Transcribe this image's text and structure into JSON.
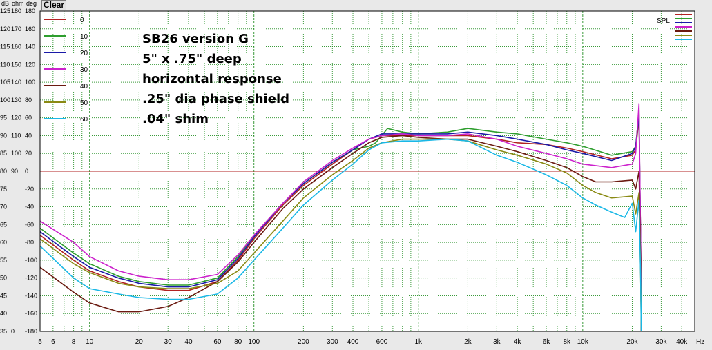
{
  "header": {
    "units": [
      "dB",
      "ohm",
      "deg"
    ],
    "clear_label": "Clear"
  },
  "annotation": [
    "SB26 version G",
    "5\" x .75\" deep",
    "horizontal response",
    ".25\" dia phase shield",
    ".04\" shim"
  ],
  "spl_label": "SPL",
  "x_unit_label": "Hz",
  "colors": {
    "plot_bg": "#ffffff",
    "grid": "#1a8a1a",
    "frame": "#000000",
    "reference_line": "#b22222"
  },
  "chart_data": {
    "type": "line",
    "x_scale": "log",
    "xlim": [
      5,
      48000
    ],
    "x_tick_labels": [
      {
        "v": 5,
        "t": "5"
      },
      {
        "v": 6,
        "t": "6"
      },
      {
        "v": 8,
        "t": "8"
      },
      {
        "v": 10,
        "t": "10"
      },
      {
        "v": 20,
        "t": "20"
      },
      {
        "v": 30,
        "t": "30"
      },
      {
        "v": 40,
        "t": "40"
      },
      {
        "v": 60,
        "t": "60"
      },
      {
        "v": 80,
        "t": "80"
      },
      {
        "v": 100,
        "t": "100"
      },
      {
        "v": 200,
        "t": "200"
      },
      {
        "v": 300,
        "t": "300"
      },
      {
        "v": 400,
        "t": "400"
      },
      {
        "v": 600,
        "t": "600"
      },
      {
        "v": 1000,
        "t": "1k"
      },
      {
        "v": 2000,
        "t": "2k"
      },
      {
        "v": 3000,
        "t": "3k"
      },
      {
        "v": 4000,
        "t": "4k"
      },
      {
        "v": 6000,
        "t": "6k"
      },
      {
        "v": 8000,
        "t": "8k"
      },
      {
        "v": 10000,
        "t": "10k"
      },
      {
        "v": 20000,
        "t": "20k"
      },
      {
        "v": 30000,
        "t": "30k"
      },
      {
        "v": 40000,
        "t": "40k"
      }
    ],
    "ylim_db": [
      35,
      125
    ],
    "y_tick_rows": [
      {
        "db": 125,
        "ohm": "180",
        "deg": "180"
      },
      {
        "db": 120,
        "ohm": "170",
        "deg": "160"
      },
      {
        "db": 115,
        "ohm": "160",
        "deg": "140"
      },
      {
        "db": 110,
        "ohm": "150",
        "deg": "120"
      },
      {
        "db": 105,
        "ohm": "140",
        "deg": "100"
      },
      {
        "db": 100,
        "ohm": "130",
        "deg": "80"
      },
      {
        "db": 95,
        "ohm": "120",
        "deg": "60"
      },
      {
        "db": 90,
        "ohm": "110",
        "deg": "40"
      },
      {
        "db": 85,
        "ohm": "100",
        "deg": "20"
      },
      {
        "db": 80,
        "ohm": "90",
        "deg": "0"
      },
      {
        "db": 75,
        "ohm": "",
        "deg": "-20"
      },
      {
        "db": 70,
        "ohm": "",
        "deg": "-40"
      },
      {
        "db": 65,
        "ohm": "",
        "deg": "-60"
      },
      {
        "db": 60,
        "ohm": "",
        "deg": "-80"
      },
      {
        "db": 55,
        "ohm": "",
        "deg": "-100"
      },
      {
        "db": 50,
        "ohm": "",
        "deg": "-120"
      },
      {
        "db": 45,
        "ohm": "",
        "deg": "-140"
      },
      {
        "db": 40,
        "ohm": "",
        "deg": "-160"
      },
      {
        "db": 35,
        "ohm": "0",
        "deg": "-180"
      }
    ],
    "reference_line_db": 80,
    "grid": true,
    "legend_position": "top-left",
    "series": [
      {
        "name": "0",
        "color": "#b22222",
        "points": [
          [
            5,
            62
          ],
          [
            8,
            55
          ],
          [
            10,
            52
          ],
          [
            15,
            49
          ],
          [
            20,
            47.5
          ],
          [
            30,
            46.5
          ],
          [
            40,
            46.5
          ],
          [
            60,
            49
          ],
          [
            80,
            55
          ],
          [
            100,
            61
          ],
          [
            150,
            70.5
          ],
          [
            200,
            76
          ],
          [
            300,
            82
          ],
          [
            400,
            86
          ],
          [
            500,
            89
          ],
          [
            600,
            90
          ],
          [
            800,
            90
          ],
          [
            1000,
            90
          ],
          [
            1500,
            90
          ],
          [
            2000,
            90
          ],
          [
            3000,
            89
          ],
          [
            4000,
            88
          ],
          [
            6000,
            87.5
          ],
          [
            8000,
            86.5
          ],
          [
            10000,
            85.5
          ],
          [
            15000,
            83.5
          ],
          [
            20000,
            84.5
          ],
          [
            21000,
            86
          ],
          [
            22000,
            95
          ],
          [
            22500,
            60
          ],
          [
            22700,
            35
          ]
        ]
      },
      {
        "name": "10",
        "color": "#2e9e2e",
        "points": [
          [
            5,
            64
          ],
          [
            8,
            57
          ],
          [
            10,
            54
          ],
          [
            15,
            50.5
          ],
          [
            20,
            49
          ],
          [
            30,
            48
          ],
          [
            40,
            48
          ],
          [
            60,
            50
          ],
          [
            80,
            56
          ],
          [
            100,
            62
          ],
          [
            150,
            71
          ],
          [
            200,
            76.5
          ],
          [
            300,
            82.5
          ],
          [
            400,
            86
          ],
          [
            500,
            87
          ],
          [
            550,
            88
          ],
          [
            650,
            92
          ],
          [
            800,
            91
          ],
          [
            1000,
            90.5
          ],
          [
            1500,
            91
          ],
          [
            2000,
            92
          ],
          [
            3000,
            91
          ],
          [
            4000,
            90.5
          ],
          [
            6000,
            89
          ],
          [
            8000,
            88
          ],
          [
            10000,
            87
          ],
          [
            15000,
            84.5
          ],
          [
            20000,
            85.5
          ],
          [
            21000,
            87
          ],
          [
            22000,
            97
          ],
          [
            22500,
            60
          ],
          [
            22700,
            35
          ]
        ]
      },
      {
        "name": "20",
        "color": "#1a1aa8",
        "points": [
          [
            5,
            63
          ],
          [
            8,
            56
          ],
          [
            10,
            53
          ],
          [
            15,
            50
          ],
          [
            20,
            48.5
          ],
          [
            30,
            47.5
          ],
          [
            40,
            47.5
          ],
          [
            60,
            49.5
          ],
          [
            80,
            55.5
          ],
          [
            100,
            61.5
          ],
          [
            150,
            71
          ],
          [
            200,
            76.5
          ],
          [
            300,
            82.5
          ],
          [
            400,
            86
          ],
          [
            500,
            89
          ],
          [
            600,
            90.5
          ],
          [
            800,
            90.5
          ],
          [
            1000,
            90.5
          ],
          [
            1500,
            90.5
          ],
          [
            2000,
            91
          ],
          [
            3000,
            90
          ],
          [
            4000,
            89
          ],
          [
            6000,
            87.5
          ],
          [
            8000,
            86
          ],
          [
            10000,
            85
          ],
          [
            15000,
            83
          ],
          [
            20000,
            85
          ],
          [
            21000,
            87
          ],
          [
            22000,
            96
          ],
          [
            22500,
            60
          ],
          [
            22700,
            35
          ]
        ]
      },
      {
        "name": "30",
        "color": "#cc22cc",
        "points": [
          [
            5,
            66
          ],
          [
            8,
            60
          ],
          [
            10,
            56
          ],
          [
            15,
            52
          ],
          [
            20,
            50.5
          ],
          [
            30,
            49.5
          ],
          [
            40,
            49.5
          ],
          [
            60,
            51
          ],
          [
            80,
            56.5
          ],
          [
            100,
            62
          ],
          [
            150,
            71
          ],
          [
            200,
            77
          ],
          [
            300,
            83
          ],
          [
            400,
            86.5
          ],
          [
            500,
            89
          ],
          [
            600,
            90
          ],
          [
            800,
            90.5
          ],
          [
            1000,
            90
          ],
          [
            1500,
            90
          ],
          [
            2000,
            90.5
          ],
          [
            3000,
            89
          ],
          [
            4000,
            87
          ],
          [
            6000,
            85
          ],
          [
            8000,
            83.5
          ],
          [
            10000,
            82
          ],
          [
            15000,
            81
          ],
          [
            20000,
            82
          ],
          [
            21000,
            85
          ],
          [
            22000,
            99
          ],
          [
            22500,
            60
          ],
          [
            22700,
            35
          ]
        ]
      },
      {
        "name": "40",
        "color": "#6b1a10",
        "points": [
          [
            5,
            53
          ],
          [
            8,
            46
          ],
          [
            10,
            43
          ],
          [
            15,
            40.5
          ],
          [
            20,
            40.5
          ],
          [
            30,
            42
          ],
          [
            40,
            44.5
          ],
          [
            60,
            49
          ],
          [
            80,
            54.5
          ],
          [
            100,
            60
          ],
          [
            150,
            69.5
          ],
          [
            200,
            75
          ],
          [
            300,
            81
          ],
          [
            400,
            85
          ],
          [
            500,
            88
          ],
          [
            600,
            89.5
          ],
          [
            800,
            90
          ],
          [
            1000,
            89.5
          ],
          [
            1500,
            89
          ],
          [
            2000,
            89
          ],
          [
            3000,
            87
          ],
          [
            4000,
            85.5
          ],
          [
            6000,
            83
          ],
          [
            8000,
            81
          ],
          [
            10000,
            78.5
          ],
          [
            12000,
            77
          ],
          [
            15000,
            77
          ],
          [
            20000,
            77.5
          ],
          [
            21000,
            75
          ],
          [
            22000,
            80
          ],
          [
            22500,
            55
          ],
          [
            22700,
            35
          ]
        ]
      },
      {
        "name": "50",
        "color": "#8a8a14",
        "points": [
          [
            5,
            61
          ],
          [
            8,
            54
          ],
          [
            10,
            51.5
          ],
          [
            15,
            48.5
          ],
          [
            20,
            47.5
          ],
          [
            30,
            47
          ],
          [
            40,
            47
          ],
          [
            60,
            48.5
          ],
          [
            80,
            52
          ],
          [
            100,
            57
          ],
          [
            150,
            66
          ],
          [
            200,
            72.5
          ],
          [
            300,
            79
          ],
          [
            400,
            83
          ],
          [
            500,
            86.5
          ],
          [
            600,
            88
          ],
          [
            800,
            89
          ],
          [
            1000,
            89
          ],
          [
            1500,
            89
          ],
          [
            2000,
            88.5
          ],
          [
            3000,
            86
          ],
          [
            4000,
            84.5
          ],
          [
            6000,
            82
          ],
          [
            8000,
            79.5
          ],
          [
            10000,
            76
          ],
          [
            12000,
            74
          ],
          [
            15000,
            72.5
          ],
          [
            20000,
            73
          ],
          [
            21000,
            68
          ],
          [
            22000,
            74
          ],
          [
            22500,
            50
          ],
          [
            22700,
            35
          ]
        ]
      },
      {
        "name": "60",
        "color": "#1ab8e6",
        "points": [
          [
            5,
            59
          ],
          [
            8,
            50
          ],
          [
            10,
            47
          ],
          [
            15,
            45.5
          ],
          [
            20,
            44.5
          ],
          [
            30,
            44
          ],
          [
            40,
            44
          ],
          [
            60,
            45.5
          ],
          [
            80,
            50
          ],
          [
            100,
            55
          ],
          [
            150,
            64
          ],
          [
            200,
            70.5
          ],
          [
            300,
            77.5
          ],
          [
            400,
            82
          ],
          [
            500,
            86
          ],
          [
            600,
            88
          ],
          [
            800,
            88.5
          ],
          [
            1000,
            88.5
          ],
          [
            1500,
            89
          ],
          [
            2000,
            88.5
          ],
          [
            3000,
            84.5
          ],
          [
            4000,
            82.5
          ],
          [
            6000,
            79
          ],
          [
            8000,
            76
          ],
          [
            10000,
            72.5
          ],
          [
            12000,
            70.5
          ],
          [
            15000,
            68.5
          ],
          [
            18000,
            67
          ],
          [
            20000,
            71
          ],
          [
            21000,
            63
          ],
          [
            22000,
            72
          ],
          [
            22500,
            50
          ],
          [
            22700,
            35
          ]
        ]
      }
    ]
  }
}
